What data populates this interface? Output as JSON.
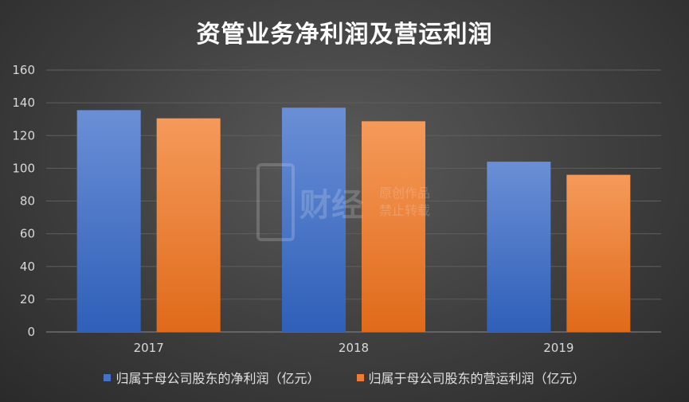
{
  "chart_data": {
    "type": "bar",
    "title": "资管业务净利润及营运利润",
    "categories": [
      "2017",
      "2018",
      "2019"
    ],
    "series": [
      {
        "name": "归属于母公司股东的净利润（亿元）",
        "values": [
          135.5,
          137,
          104
        ],
        "color": "#4472c4"
      },
      {
        "name": "归属于母公司股东的营运利润（亿元）",
        "values": [
          130.5,
          128.7,
          96
        ],
        "color": "#ed7d31"
      }
    ],
    "yticks": [
      "0",
      "20",
      "40",
      "60",
      "80",
      "100",
      "120",
      "140",
      "160"
    ],
    "ylim": [
      0,
      160
    ],
    "grid": true,
    "legend": "bottom"
  },
  "watermark": {
    "brand": "财经",
    "line1": "原创作品",
    "line2": "禁止转载"
  }
}
